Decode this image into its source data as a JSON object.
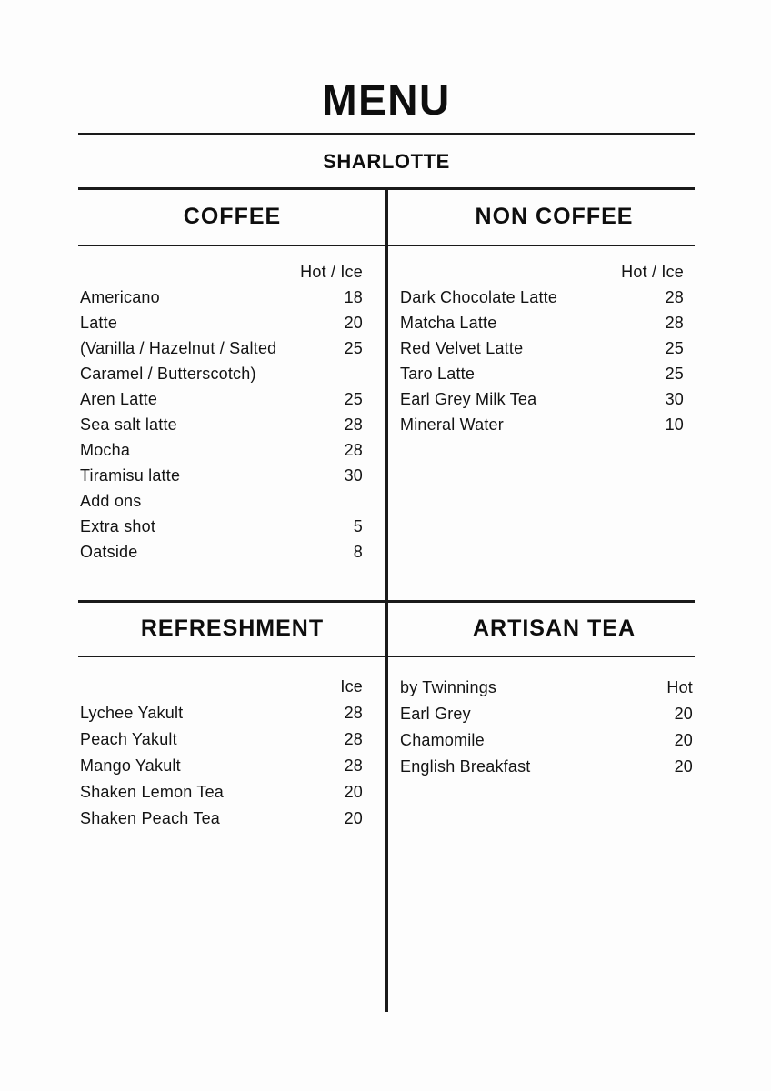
{
  "page": {
    "title": "MENU",
    "subtitle": "SHARLOTTE",
    "background_color": "#fdfdfd",
    "text_color": "#131313",
    "rule_color": "#1a1a1a"
  },
  "sections": [
    {
      "id": "coffee",
      "title": "COFFEE",
      "note": "",
      "price_header": "Hot / Ice",
      "items": [
        {
          "name": "Americano",
          "price": "18"
        },
        {
          "name": "Latte",
          "price": "20"
        },
        {
          "name": "(Vanilla / Hazelnut / Salted Caramel / Butterscotch)",
          "price": "25"
        },
        {
          "name": "Aren Latte",
          "price": "25"
        },
        {
          "name": "Sea salt latte",
          "price": "28"
        },
        {
          "name": "Mocha",
          "price": "28"
        },
        {
          "name": "Tiramisu latte",
          "price": "30"
        },
        {
          "name": "Add ons",
          "price": ""
        },
        {
          "name": "Extra shot",
          "price": "5"
        },
        {
          "name": "Oatside",
          "price": "8"
        }
      ]
    },
    {
      "id": "non-coffee",
      "title": "NON COFFEE",
      "note": "",
      "price_header": "Hot / Ice",
      "items": [
        {
          "name": "Dark Chocolate Latte",
          "price": "28"
        },
        {
          "name": "Matcha Latte",
          "price": "28"
        },
        {
          "name": "Red Velvet Latte",
          "price": "25"
        },
        {
          "name": "Taro Latte",
          "price": "25"
        },
        {
          "name": "Earl Grey Milk Tea",
          "price": "30"
        },
        {
          "name": "Mineral Water",
          "price": "10"
        }
      ]
    },
    {
      "id": "refreshment",
      "title": "REFRESHMENT",
      "note": "",
      "price_header": "Ice",
      "items": [
        {
          "name": "Lychee Yakult",
          "price": "28"
        },
        {
          "name": "Peach Yakult",
          "price": "28"
        },
        {
          "name": "Mango Yakult",
          "price": "28"
        },
        {
          "name": "Shaken Lemon Tea",
          "price": "20"
        },
        {
          "name": "Shaken Peach Tea",
          "price": "20"
        }
      ]
    },
    {
      "id": "artisan-tea",
      "title": "ARTISAN TEA",
      "note": "by Twinnings",
      "price_header": "Hot",
      "items": [
        {
          "name": "Earl Grey",
          "price": "20"
        },
        {
          "name": "Chamomile",
          "price": "20"
        },
        {
          "name": "English Breakfast",
          "price": "20"
        }
      ]
    }
  ]
}
